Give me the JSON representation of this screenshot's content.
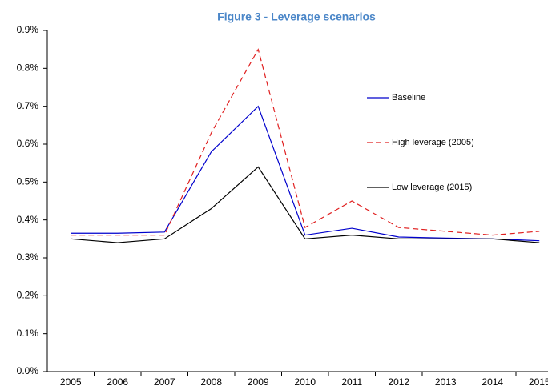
{
  "chart_data": {
    "type": "line",
    "title": "Figure 3 - Leverage scenarios",
    "categories": [
      "2005",
      "2006",
      "2007",
      "2008",
      "2009",
      "2010",
      "2011",
      "2012",
      "2013",
      "2014",
      "2015"
    ],
    "series": [
      {
        "name": "Baseline",
        "color": "#0000cc",
        "dashed": false,
        "values": [
          0.365,
          0.365,
          0.368,
          0.58,
          0.7,
          0.36,
          0.378,
          0.355,
          0.352,
          0.35,
          0.345
        ]
      },
      {
        "name": "High leverage (2005)",
        "color": "#e02020",
        "dashed": true,
        "values": [
          0.36,
          0.36,
          0.36,
          0.63,
          0.85,
          0.38,
          0.45,
          0.38,
          0.37,
          0.36,
          0.37
        ]
      },
      {
        "name": "Low leverage (2015)",
        "color": "#000000",
        "dashed": false,
        "values": [
          0.35,
          0.34,
          0.35,
          0.43,
          0.54,
          0.35,
          0.36,
          0.35,
          0.35,
          0.35,
          0.34
        ]
      }
    ],
    "ylim": [
      0,
      0.9
    ],
    "yticks": [
      {
        "value": 0,
        "label": "0.0%"
      },
      {
        "value": 0.1,
        "label": "0.1%"
      },
      {
        "value": 0.2,
        "label": "0.2%"
      },
      {
        "value": 0.3,
        "label": "0.3%"
      },
      {
        "value": 0.4,
        "label": "0.4%"
      },
      {
        "value": 0.5,
        "label": "0.5%"
      },
      {
        "value": 0.6,
        "label": "0.6%"
      },
      {
        "value": 0.7,
        "label": "0.7%"
      },
      {
        "value": 0.8,
        "label": "0.8%"
      },
      {
        "value": 0.9,
        "label": "0.9%"
      }
    ],
    "grid": false,
    "legend": "right"
  }
}
